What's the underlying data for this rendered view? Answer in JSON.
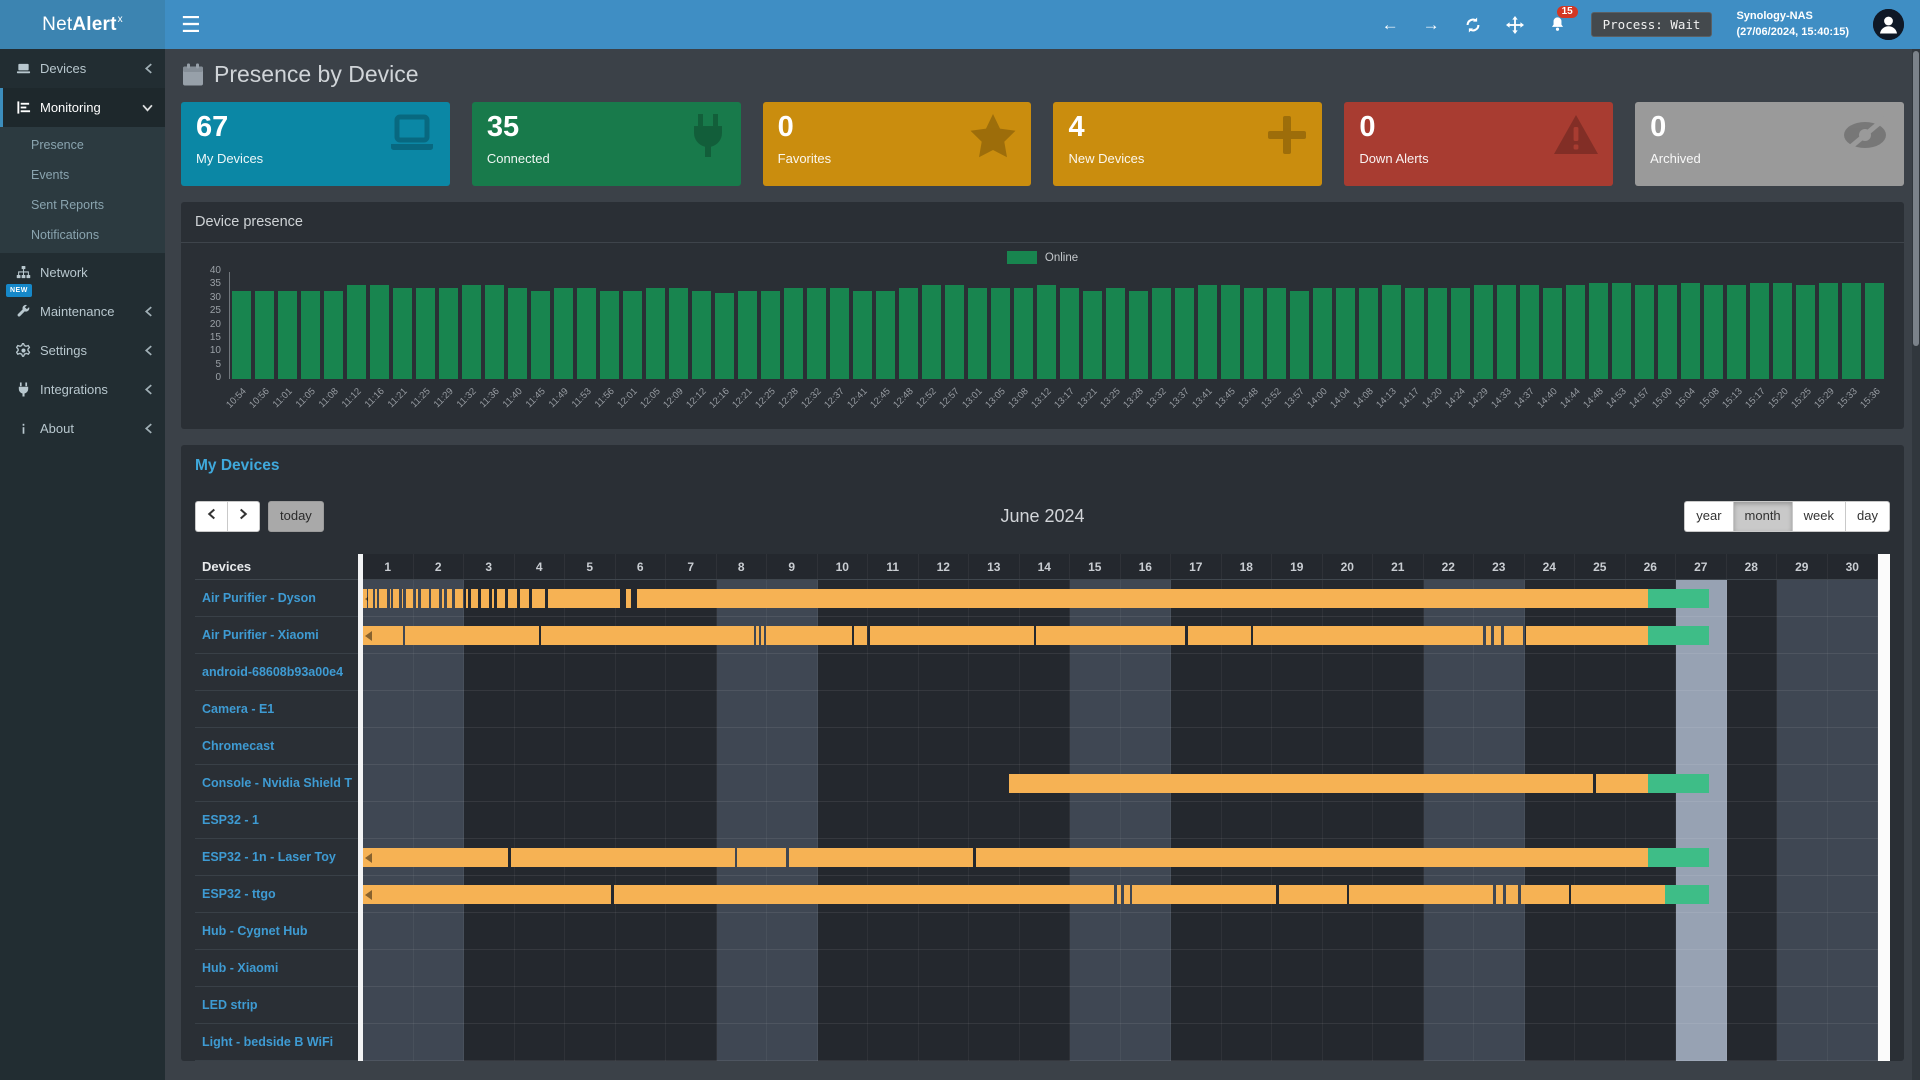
{
  "navbar": {
    "brand_prefix": "Net",
    "brand_bold": "Alert",
    "brand_sup": "x",
    "notification_count": "15",
    "process_status": "Process: Wait",
    "host_name": "Synology-NAS",
    "host_time": "(27/06/2024, 15:40:15)"
  },
  "sidebar": {
    "items": [
      {
        "label": "Devices",
        "icon": "laptop-icon",
        "chevron": "left"
      },
      {
        "label": "Monitoring",
        "icon": "chart-icon",
        "chevron": "down",
        "active": true,
        "submenu": [
          "Presence",
          "Events",
          "Sent Reports",
          "Notifications"
        ]
      },
      {
        "label": "Network",
        "icon": "sitemap-icon",
        "chevron": "none"
      },
      {
        "label": "Maintenance",
        "icon": "wrench-icon",
        "chevron": "left",
        "badge": "NEW"
      },
      {
        "label": "Settings",
        "icon": "gear-icon",
        "chevron": "left"
      },
      {
        "label": "Integrations",
        "icon": "plug-icon",
        "chevron": "left"
      },
      {
        "label": "About",
        "icon": "info-icon",
        "chevron": "left"
      }
    ]
  },
  "page": {
    "title": "Presence by Device"
  },
  "infoboxes": [
    {
      "value": "67",
      "label": "My Devices",
      "color": "#0b87a5",
      "icon": "laptop-icon"
    },
    {
      "value": "35",
      "label": "Connected",
      "color": "#187a4b",
      "icon": "plug-icon"
    },
    {
      "value": "0",
      "label": "Favorites",
      "color": "#ca8d0e",
      "icon": "star-icon"
    },
    {
      "value": "4",
      "label": "New Devices",
      "color": "#ca8d0e",
      "icon": "plus-icon"
    },
    {
      "value": "0",
      "label": "Down Alerts",
      "color": "#a83c31",
      "icon": "warning-icon"
    },
    {
      "value": "0",
      "label": "Archived",
      "color": "#9a9a9a",
      "icon": "eye-slash-icon"
    }
  ],
  "presence_panel": {
    "title": "Device presence",
    "chart_data": {
      "type": "bar",
      "title": "Device presence",
      "legend_label": "Online",
      "legend_position": "top-center",
      "bar_color": "#18854f",
      "grid": false,
      "ylim": [
        0,
        40
      ],
      "yticks": [
        0,
        5,
        10,
        15,
        20,
        25,
        30,
        35,
        40
      ],
      "categories": [
        "10:54",
        "10:56",
        "11:01",
        "11:05",
        "11:08",
        "11:12",
        "11:16",
        "11:21",
        "11:25",
        "11:29",
        "11:32",
        "11:36",
        "11:40",
        "11:45",
        "11:49",
        "11:53",
        "11:56",
        "12:01",
        "12:05",
        "12:09",
        "12:12",
        "12:16",
        "12:21",
        "12:25",
        "12:28",
        "12:32",
        "12:37",
        "12:41",
        "12:45",
        "12:48",
        "12:52",
        "12:57",
        "13:01",
        "13:05",
        "13:08",
        "13:12",
        "13:17",
        "13:21",
        "13:25",
        "13:28",
        "13:32",
        "13:37",
        "13:41",
        "13:45",
        "13:48",
        "13:52",
        "13:57",
        "14:00",
        "14:04",
        "14:08",
        "14:13",
        "14:17",
        "14:20",
        "14:24",
        "14:29",
        "14:33",
        "14:37",
        "14:40",
        "14:44",
        "14:48",
        "14:53",
        "14:57",
        "15:00",
        "15:04",
        "15:08",
        "15:13",
        "15:17",
        "15:20",
        "15:25",
        "15:29",
        "15:33",
        "15:36"
      ],
      "values": [
        33,
        33,
        33,
        33,
        33,
        35,
        35,
        34,
        34,
        34,
        35,
        35,
        34,
        33,
        34,
        34,
        33,
        33,
        34,
        34,
        33,
        32,
        33,
        33,
        34,
        34,
        34,
        33,
        33,
        34,
        35,
        35,
        34,
        34,
        34,
        35,
        34,
        33,
        34,
        33,
        34,
        34,
        35,
        35,
        34,
        34,
        33,
        34,
        34,
        34,
        35,
        34,
        34,
        34,
        35,
        35,
        35,
        34,
        35,
        36,
        36,
        35,
        35,
        36,
        35,
        35,
        36,
        36,
        35,
        36,
        36,
        36
      ]
    }
  },
  "calendar": {
    "heading": "My Devices",
    "devices_header": "Devices",
    "toolbar": {
      "today_label": "today",
      "title": "June 2024",
      "views": [
        "year",
        "month",
        "week",
        "day"
      ],
      "active_view": "month"
    },
    "days": [
      1,
      2,
      3,
      4,
      5,
      6,
      7,
      8,
      9,
      10,
      11,
      12,
      13,
      14,
      15,
      16,
      17,
      18,
      19,
      20,
      21,
      22,
      23,
      24,
      25,
      26,
      27,
      28,
      29,
      30
    ],
    "weekend_days": [
      1,
      2,
      8,
      9,
      15,
      16,
      22,
      23,
      29,
      30
    ],
    "today_day": 27,
    "colors": {
      "online_past": "#f6b254",
      "online_now": "#3ebd87",
      "today_column": "#97a2b3",
      "weekend_column": "#3f4753"
    },
    "rows": [
      {
        "name": "Air Purifier - Dyson",
        "continues_before": true,
        "orange_segments": [
          [
            1.0,
            1.07
          ],
          [
            1.1,
            1.2
          ],
          [
            1.24,
            1.27
          ],
          [
            1.32,
            1.48
          ],
          [
            1.53,
            1.56
          ],
          [
            1.6,
            1.72
          ],
          [
            1.77,
            1.8
          ],
          [
            1.86,
            2.0
          ],
          [
            2.05,
            2.09
          ],
          [
            2.14,
            2.3
          ],
          [
            2.35,
            2.5
          ],
          [
            2.56,
            2.6
          ],
          [
            2.66,
            2.76
          ],
          [
            2.82,
            2.98
          ],
          [
            3.04,
            3.08
          ],
          [
            3.14,
            3.28
          ],
          [
            3.34,
            3.5
          ],
          [
            3.56,
            3.6
          ],
          [
            3.66,
            3.82
          ],
          [
            3.88,
            4.04
          ],
          [
            4.1,
            4.28
          ],
          [
            4.34,
            4.6
          ],
          [
            4.66,
            6.08
          ],
          [
            6.2,
            6.3
          ],
          [
            6.42,
            26.45
          ]
        ],
        "green_segment": [
          26.45,
          27.65
        ]
      },
      {
        "name": "Air Purifier - Xiaomi",
        "continues_before": true,
        "orange_segments": [
          [
            1.0,
            1.8
          ],
          [
            1.84,
            4.48
          ],
          [
            4.52,
            8.74
          ],
          [
            8.79,
            8.84
          ],
          [
            8.89,
            8.94
          ],
          [
            8.99,
            10.68
          ],
          [
            10.73,
            10.99
          ],
          [
            11.04,
            14.28
          ],
          [
            14.33,
            17.28
          ],
          [
            17.33,
            18.58
          ],
          [
            18.63,
            23.18
          ],
          [
            23.23,
            23.34
          ],
          [
            23.39,
            23.54
          ],
          [
            23.59,
            23.98
          ],
          [
            24.03,
            26.45
          ]
        ],
        "green_segment": [
          26.45,
          27.65
        ]
      },
      {
        "name": "android-68608b93a00e4",
        "continues_before": false,
        "orange_segments": [],
        "green_segment": null
      },
      {
        "name": "Camera - E1",
        "continues_before": false,
        "orange_segments": [],
        "green_segment": null
      },
      {
        "name": "Chromecast",
        "continues_before": false,
        "orange_segments": [],
        "green_segment": null
      },
      {
        "name": "Console - Nvidia Shield T",
        "continues_before": false,
        "orange_segments": [
          [
            13.8,
            25.36
          ],
          [
            25.41,
            26.45
          ]
        ],
        "green_segment": [
          26.45,
          27.65
        ]
      },
      {
        "name": "ESP32 - 1",
        "continues_before": false,
        "orange_segments": [],
        "green_segment": null
      },
      {
        "name": "ESP32 - 1n - Laser Toy",
        "continues_before": true,
        "orange_segments": [
          [
            1.0,
            3.88
          ],
          [
            3.93,
            8.36
          ],
          [
            8.41,
            9.38
          ],
          [
            9.43,
            13.08
          ],
          [
            13.13,
            26.45
          ]
        ],
        "green_segment": [
          26.45,
          27.65
        ]
      },
      {
        "name": "ESP32 - ttgo",
        "continues_before": true,
        "orange_segments": [
          [
            1.0,
            5.92
          ],
          [
            5.97,
            15.88
          ],
          [
            15.93,
            16.02
          ],
          [
            16.07,
            16.18
          ],
          [
            16.23,
            19.08
          ],
          [
            19.13,
            20.48
          ],
          [
            20.53,
            23.38
          ],
          [
            23.43,
            23.58
          ],
          [
            23.63,
            23.88
          ],
          [
            23.93,
            24.88
          ],
          [
            24.93,
            26.78
          ]
        ],
        "green_segment": [
          26.78,
          27.65
        ]
      },
      {
        "name": "Hub - Cygnet Hub",
        "continues_before": false,
        "orange_segments": [],
        "green_segment": null
      },
      {
        "name": "Hub - Xiaomi",
        "continues_before": false,
        "orange_segments": [],
        "green_segment": null
      },
      {
        "name": "LED strip",
        "continues_before": false,
        "orange_segments": [],
        "green_segment": null
      },
      {
        "name": "Light - bedside B WiFi",
        "continues_before": false,
        "orange_segments": [],
        "green_segment": null
      }
    ]
  }
}
